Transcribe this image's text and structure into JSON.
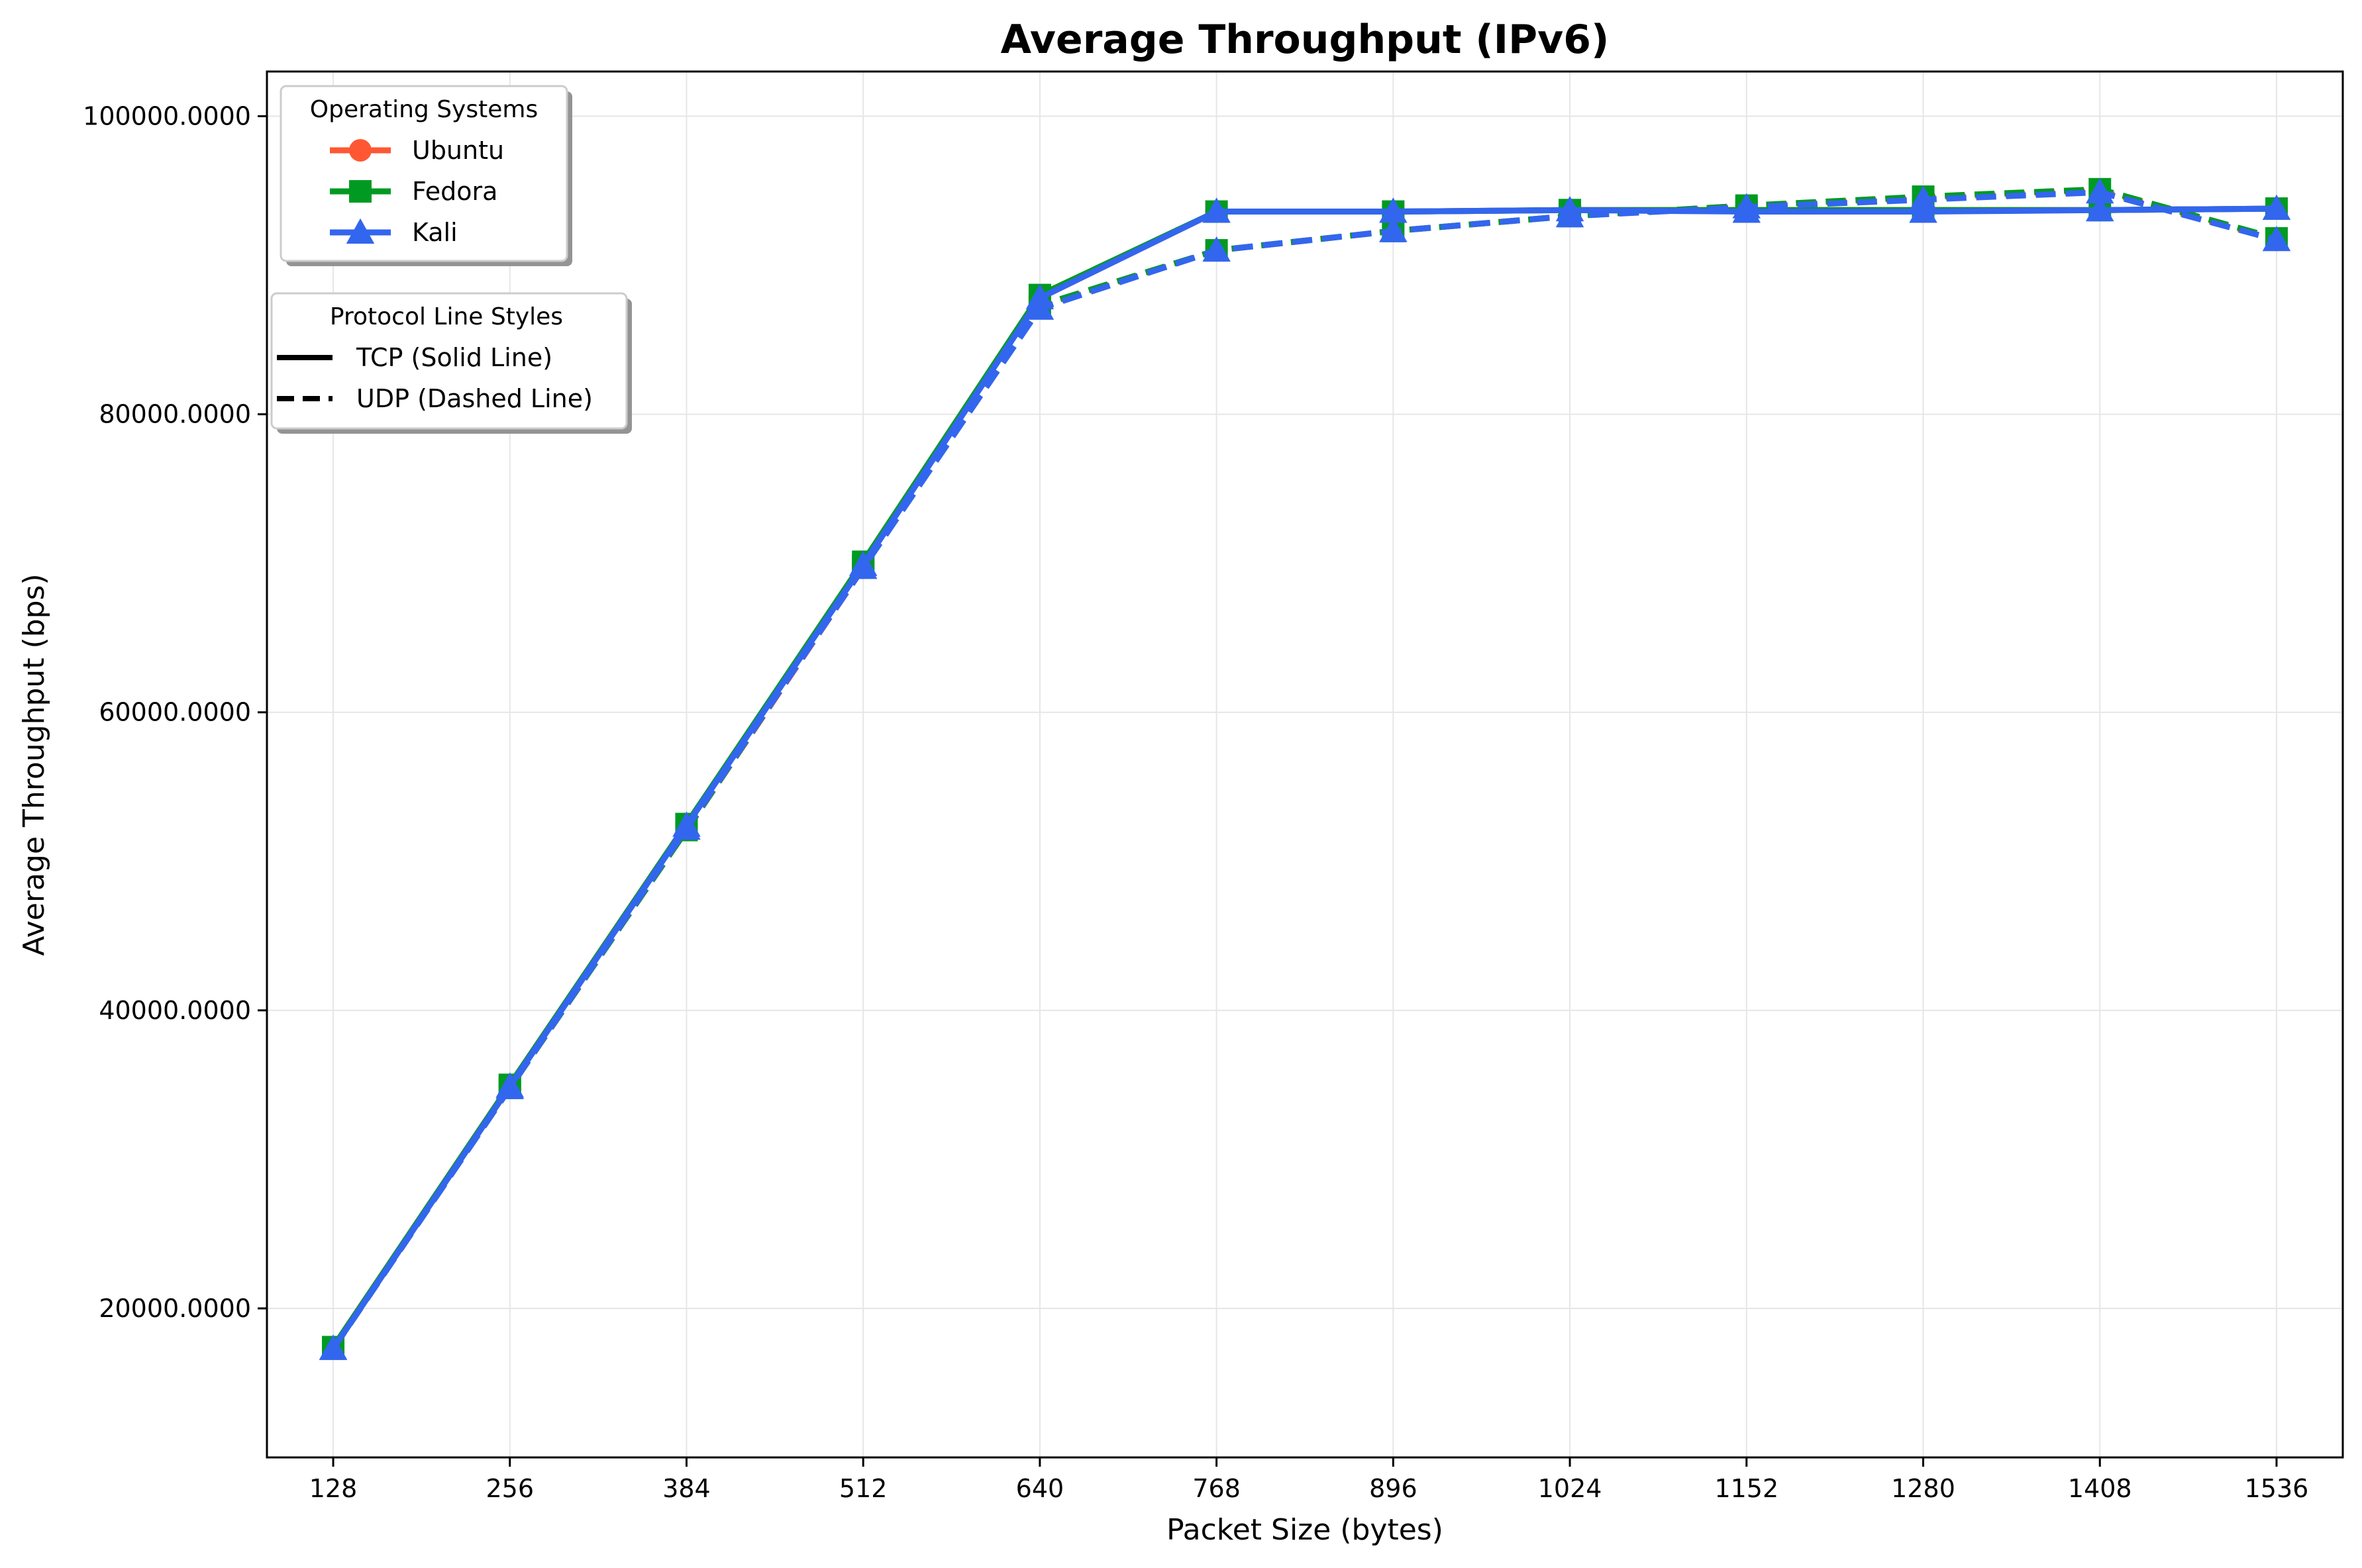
{
  "chart_data": {
    "type": "line",
    "title": "Average Throughput (IPv6)",
    "xlabel": "Packet Size (bytes)",
    "ylabel": "Average Throughput (bps)",
    "x": [
      128,
      256,
      384,
      512,
      640,
      768,
      896,
      1024,
      1152,
      1280,
      1408,
      1536
    ],
    "x_tick_labels": [
      "128",
      "256",
      "384",
      "512",
      "640",
      "768",
      "896",
      "1024",
      "1152",
      "1280",
      "1408",
      "1536"
    ],
    "ylim": [
      10000,
      103000
    ],
    "y_ticks": [
      20000,
      40000,
      60000,
      80000,
      100000
    ],
    "y_tick_labels": [
      "20000.0000",
      "40000.0000",
      "60000.0000",
      "80000.0000",
      "100000.0000"
    ],
    "grid": true,
    "series": [
      {
        "name": "Ubuntu",
        "protocol": "TCP",
        "color": "#ff5733",
        "marker": "circle",
        "style": "solid",
        "values": [
          17400,
          35000,
          52500,
          70000,
          87800,
          93600,
          93600,
          93700,
          93700,
          93700,
          93700,
          93800
        ]
      },
      {
        "name": "Ubuntu",
        "protocol": "UDP",
        "color": "#ff5733",
        "marker": "circle",
        "style": "dashed",
        "values": [
          17300,
          34800,
          52100,
          69700,
          87200,
          91000,
          92300,
          93300,
          94000,
          94500,
          95000,
          91700
        ]
      },
      {
        "name": "Fedora",
        "protocol": "TCP",
        "color": "#009a22",
        "marker": "square",
        "style": "solid",
        "values": [
          17400,
          35000,
          52500,
          70100,
          88000,
          93600,
          93600,
          93700,
          93700,
          93700,
          93700,
          93800
        ]
      },
      {
        "name": "Fedora",
        "protocol": "UDP",
        "color": "#009a22",
        "marker": "square",
        "style": "dashed",
        "values": [
          17300,
          34800,
          52100,
          69800,
          87300,
          91000,
          92300,
          93300,
          94000,
          94600,
          95100,
          91800
        ]
      },
      {
        "name": "Kali",
        "protocol": "TCP",
        "color": "#3366ee",
        "marker": "triangle",
        "style": "solid",
        "values": [
          17300,
          34900,
          52400,
          69900,
          87800,
          93600,
          93600,
          93700,
          93600,
          93600,
          93700,
          93800
        ]
      },
      {
        "name": "Kali",
        "protocol": "UDP",
        "color": "#3366ee",
        "marker": "triangle",
        "style": "dashed",
        "values": [
          17300,
          34800,
          52200,
          69700,
          87100,
          91000,
          92300,
          93300,
          93900,
          94400,
          94900,
          91700
        ]
      }
    ],
    "legend_os": {
      "title": "Operating Systems",
      "placement": "top-left",
      "entries": [
        {
          "label": "Ubuntu",
          "color": "#ff5733",
          "marker": "circle"
        },
        {
          "label": "Fedora",
          "color": "#009a22",
          "marker": "square"
        },
        {
          "label": "Kali",
          "color": "#3366ee",
          "marker": "triangle"
        }
      ]
    },
    "legend_protocol": {
      "title": "Protocol Line Styles",
      "placement": "upper-left",
      "entries": [
        {
          "label": "TCP (Solid Line)",
          "style": "solid"
        },
        {
          "label": "UDP (Dashed Line)",
          "style": "dashed"
        }
      ]
    }
  }
}
